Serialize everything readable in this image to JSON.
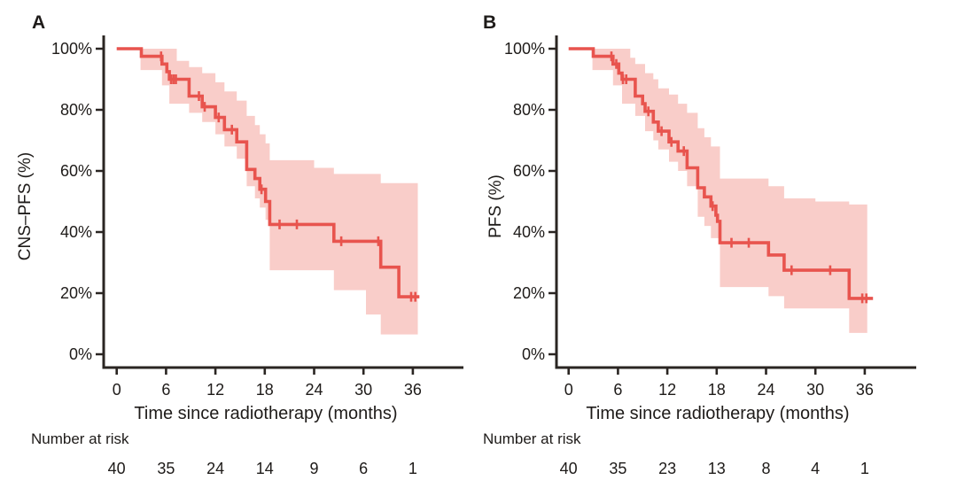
{
  "figure": {
    "background": "#ffffff",
    "line_color": "#E8544E",
    "band_color": "#F9CDC9",
    "axis_color": "#2A2522",
    "text_color": "#1E1B19"
  },
  "chart_data": [
    {
      "type": "line",
      "subtype": "kaplan-meier-step",
      "panel_label": "A",
      "ylabel": "CNS–PFS (%)",
      "xlabel": "Time since radiotherapy (months)",
      "x_tick_values": [
        0,
        6,
        12,
        18,
        24,
        30,
        36
      ],
      "x_tick_labels": [
        "0",
        "6",
        "12",
        "18",
        "24",
        "30",
        "36"
      ],
      "y_tick_values": [
        0,
        20,
        40,
        60,
        80,
        100
      ],
      "y_tick_labels": [
        "0%",
        "20%",
        "40%",
        "60%",
        "80%",
        "100%"
      ],
      "xlim": [
        0,
        42
      ],
      "ylim": [
        0,
        100
      ],
      "grid": false,
      "legend": "none",
      "risk_label": "Number at risk",
      "risk_times": [
        0,
        6,
        12,
        18,
        24,
        30,
        36
      ],
      "risk_counts": [
        "40",
        "35",
        "24",
        "14",
        "9",
        "6",
        "1"
      ],
      "survival_steps": [
        [
          0,
          100
        ],
        [
          3.0,
          97.5
        ],
        [
          5.5,
          95
        ],
        [
          6.1,
          92.5
        ],
        [
          6.4,
          90
        ],
        [
          8.8,
          84.5
        ],
        [
          10.4,
          81
        ],
        [
          12.0,
          77.5
        ],
        [
          13.1,
          73.5
        ],
        [
          14.6,
          69.5
        ],
        [
          15.8,
          60.5
        ],
        [
          16.8,
          57.5
        ],
        [
          17.4,
          54
        ],
        [
          18.1,
          50
        ],
        [
          18.6,
          42.5
        ],
        [
          26.4,
          37
        ],
        [
          32.1,
          28.5
        ],
        [
          34.3,
          18.8
        ]
      ],
      "curve_end": 36.8,
      "censor_marks": [
        [
          5.4,
          97.5
        ],
        [
          6.6,
          90
        ],
        [
          6.9,
          90
        ],
        [
          7.2,
          90
        ],
        [
          10.0,
          84.5
        ],
        [
          10.7,
          81
        ],
        [
          12.4,
          77.5
        ],
        [
          14.0,
          73.5
        ],
        [
          17.6,
          54
        ],
        [
          19.8,
          42.5
        ],
        [
          21.9,
          42.5
        ],
        [
          27.3,
          37
        ],
        [
          31.8,
          37
        ],
        [
          35.8,
          18.8
        ],
        [
          36.3,
          18.8
        ]
      ],
      "ci_upper": [
        [
          2.9,
          100
        ],
        [
          7.3,
          96
        ],
        [
          8.8,
          94
        ],
        [
          10.4,
          92
        ],
        [
          12.0,
          89
        ],
        [
          13.1,
          86
        ],
        [
          14.6,
          83
        ],
        [
          15.8,
          78
        ],
        [
          16.8,
          75
        ],
        [
          17.4,
          72
        ],
        [
          18.1,
          69
        ],
        [
          18.6,
          63.5
        ],
        [
          24.0,
          61
        ],
        [
          26.4,
          59
        ],
        [
          32.1,
          56
        ],
        [
          34.3,
          56
        ]
      ],
      "ci_lower": [
        [
          2.9,
          93
        ],
        [
          5.5,
          88
        ],
        [
          6.4,
          82
        ],
        [
          8.8,
          79
        ],
        [
          10.4,
          76
        ],
        [
          12.0,
          72
        ],
        [
          13.1,
          68
        ],
        [
          14.6,
          64
        ],
        [
          15.8,
          55
        ],
        [
          16.8,
          51
        ],
        [
          17.4,
          48
        ],
        [
          18.1,
          44
        ],
        [
          18.6,
          27.5
        ],
        [
          26.4,
          21
        ],
        [
          30.3,
          13
        ],
        [
          32.1,
          6.5
        ],
        [
          34.3,
          6.5
        ]
      ],
      "band_end": 36.6
    },
    {
      "type": "line",
      "subtype": "kaplan-meier-step",
      "panel_label": "B",
      "ylabel": "PFS (%)",
      "xlabel": "Time since radiotherapy (months)",
      "x_tick_values": [
        0,
        6,
        12,
        18,
        24,
        30,
        36
      ],
      "x_tick_labels": [
        "0",
        "6",
        "12",
        "18",
        "24",
        "30",
        "36"
      ],
      "y_tick_values": [
        0,
        20,
        40,
        60,
        80,
        100
      ],
      "y_tick_labels": [
        "0%",
        "20%",
        "40%",
        "60%",
        "80%",
        "100%"
      ],
      "xlim": [
        0,
        42
      ],
      "ylim": [
        0,
        100
      ],
      "grid": false,
      "legend": "none",
      "risk_label": "Number at risk",
      "risk_times": [
        0,
        6,
        12,
        18,
        24,
        30,
        36
      ],
      "risk_counts": [
        "40",
        "35",
        "23",
        "13",
        "8",
        "4",
        "1"
      ],
      "survival_steps": [
        [
          0,
          100
        ],
        [
          3.0,
          97.5
        ],
        [
          5.4,
          95
        ],
        [
          6.1,
          92
        ],
        [
          6.5,
          90
        ],
        [
          8.1,
          84.5
        ],
        [
          9.0,
          82
        ],
        [
          9.3,
          79.5
        ],
        [
          10.3,
          76
        ],
        [
          10.9,
          73
        ],
        [
          12.2,
          69.5
        ],
        [
          13.3,
          66.5
        ],
        [
          14.4,
          61
        ],
        [
          15.7,
          54.5
        ],
        [
          16.5,
          51.5
        ],
        [
          17.3,
          48.5
        ],
        [
          17.9,
          45.5
        ],
        [
          18.1,
          43.5
        ],
        [
          18.4,
          36.5
        ],
        [
          24.3,
          32.5
        ],
        [
          26.2,
          27.5
        ],
        [
          34.1,
          18.3
        ]
      ],
      "curve_end": 37.0,
      "censor_marks": [
        [
          5.2,
          97.5
        ],
        [
          5.8,
          95
        ],
        [
          6.6,
          90
        ],
        [
          7.0,
          90
        ],
        [
          9.7,
          79.5
        ],
        [
          11.3,
          73
        ],
        [
          12.5,
          69.5
        ],
        [
          14.0,
          66.5
        ],
        [
          17.5,
          48.5
        ],
        [
          19.8,
          36.5
        ],
        [
          21.9,
          36.5
        ],
        [
          27.1,
          27.5
        ],
        [
          31.8,
          27.5
        ],
        [
          35.7,
          18.3
        ],
        [
          36.2,
          18.3
        ]
      ],
      "ci_upper": [
        [
          2.9,
          100
        ],
        [
          7.5,
          97
        ],
        [
          8.1,
          95
        ],
        [
          9.3,
          92
        ],
        [
          10.3,
          90
        ],
        [
          10.9,
          87
        ],
        [
          12.2,
          85
        ],
        [
          13.3,
          82
        ],
        [
          14.4,
          79
        ],
        [
          15.7,
          74
        ],
        [
          16.5,
          71
        ],
        [
          17.3,
          68
        ],
        [
          18.4,
          57.5
        ],
        [
          24.3,
          55
        ],
        [
          26.2,
          51
        ],
        [
          30.0,
          50
        ],
        [
          34.1,
          49
        ]
      ],
      "ci_lower": [
        [
          2.9,
          93
        ],
        [
          5.4,
          88
        ],
        [
          6.5,
          82
        ],
        [
          8.1,
          78
        ],
        [
          9.3,
          73
        ],
        [
          10.3,
          70
        ],
        [
          10.9,
          67
        ],
        [
          12.2,
          63
        ],
        [
          13.3,
          60
        ],
        [
          14.4,
          55
        ],
        [
          15.7,
          45
        ],
        [
          16.5,
          42
        ],
        [
          17.3,
          38
        ],
        [
          18.4,
          22
        ],
        [
          24.3,
          19
        ],
        [
          26.2,
          15
        ],
        [
          31.0,
          15
        ],
        [
          34.1,
          7
        ]
      ],
      "band_end": 36.3
    }
  ]
}
